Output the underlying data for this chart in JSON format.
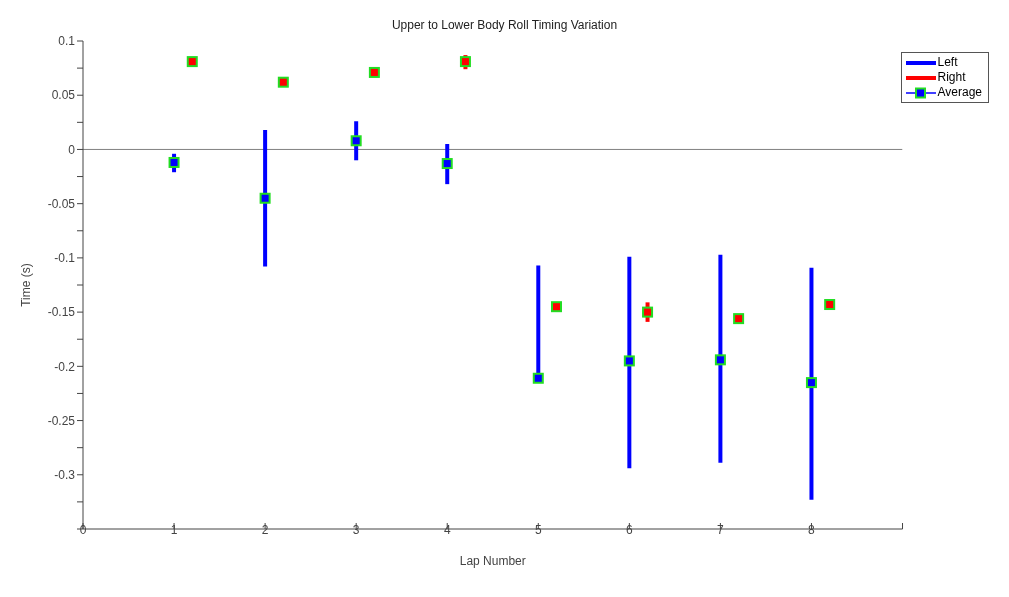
{
  "chart_data": {
    "type": "scatter",
    "title": "Upper to Lower Body Roll Timing Variation",
    "xlabel": "Lap Number",
    "ylabel": "Time (s)",
    "xlim": [
      0,
      9
    ],
    "xticks": [
      0,
      1,
      2,
      3,
      4,
      5,
      6,
      7,
      8,
      {
        "value": 9,
        "label": null
      }
    ],
    "ylim": [
      -0.35,
      0.1
    ],
    "yticks": [
      {
        "value": -0.35,
        "label": null
      },
      {
        "value": -0.325,
        "label": null
      },
      -0.3,
      {
        "value": -0.275,
        "label": null
      },
      -0.25,
      {
        "value": -0.225,
        "label": null
      },
      -0.2,
      {
        "value": -0.175,
        "label": null
      },
      -0.15,
      {
        "value": -0.125,
        "label": null
      },
      -0.1,
      {
        "value": -0.075,
        "label": null
      },
      -0.05,
      {
        "value": -0.025,
        "label": null
      },
      0,
      {
        "value": 0.025,
        "label": null
      },
      0.05,
      {
        "value": 0.075,
        "label": null
      },
      0.1
    ],
    "legend": "top right",
    "marker": "square",
    "annotations": [
      "Average"
    ],
    "ref_lines": [
      {
        "axis": "y",
        "value": 0,
        "color": "#808080"
      }
    ],
    "series": [
      {
        "name": "Left",
        "color": "#0000ff",
        "x": [
          1,
          2,
          3,
          4,
          5,
          6,
          7,
          8
        ],
        "values": [
          -0.012,
          -0.045,
          0.008,
          -0.013,
          -0.211,
          -0.195,
          -0.194,
          -0.215
        ],
        "errors": [
          [
            -0.021,
            -0.004
          ],
          [
            -0.108,
            0.018
          ],
          [
            -0.01,
            0.026
          ],
          [
            -0.032,
            0.005
          ],
          [
            -0.211,
            -0.107
          ],
          [
            -0.294,
            -0.099
          ],
          [
            -0.289,
            -0.097
          ],
          [
            -0.323,
            -0.109
          ]
        ]
      },
      {
        "name": "Right",
        "color": "#ff0000",
        "x": [
          1.2,
          2.2,
          3.2,
          4.2,
          5.2,
          6.2,
          7.2,
          8.2
        ],
        "values": [
          0.081,
          0.062,
          0.071,
          0.081,
          -0.145,
          -0.15,
          -0.156,
          -0.143
        ],
        "errors": [
          [
            0.077,
            0.085
          ],
          [
            0.059,
            0.065
          ],
          [
            0.069,
            0.073
          ],
          [
            0.074,
            0.087
          ],
          null,
          [
            -0.159,
            -0.141
          ],
          null,
          [
            -0.147,
            -0.139
          ]
        ]
      }
    ]
  }
}
